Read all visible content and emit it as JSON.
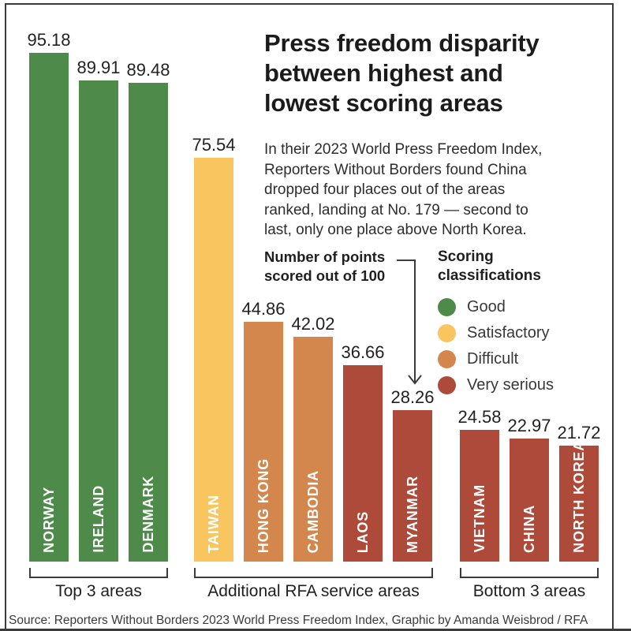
{
  "header": {
    "title_lines": [
      "Press freedom disparity",
      "between highest and",
      "lowest scoring areas"
    ],
    "subtitle_lines": [
      "In their 2023 World Press Freedom Index,",
      "Reporters Without Borders found China",
      "dropped four places out of the areas",
      "ranked, landing at No. 179 — second to",
      "last, only one place above North Korea."
    ]
  },
  "annotation": {
    "lines": [
      "Number of points",
      "scored out of 100"
    ]
  },
  "legend": {
    "title_lines": [
      "Scoring",
      "classifications"
    ],
    "items": [
      {
        "key": "good",
        "label": "Good",
        "color": "#4e8b4a"
      },
      {
        "key": "satisfactory",
        "label": "Satisfactory",
        "color": "#f9c55f"
      },
      {
        "key": "difficult",
        "label": "Difficult",
        "color": "#d3874d"
      },
      {
        "key": "very_serious",
        "label": "Very serious",
        "color": "#ae4a39"
      }
    ]
  },
  "chart_data": {
    "type": "bar",
    "title": "Press freedom disparity between highest and lowest scoring areas",
    "ylabel": "Number of points scored out of 100",
    "ylim": [
      0,
      100
    ],
    "grid": false,
    "legend_position": "right",
    "groups": [
      {
        "label": "Top 3 areas",
        "bars": [
          {
            "label": "NORWAY",
            "value": 95.18,
            "classification": "good"
          },
          {
            "label": "IRELAND",
            "value": 89.91,
            "classification": "good"
          },
          {
            "label": "DENMARK",
            "value": 89.48,
            "classification": "good"
          }
        ]
      },
      {
        "label": "Additional RFA service areas",
        "bars": [
          {
            "label": "TAIWAN",
            "value": 75.54,
            "classification": "satisfactory"
          },
          {
            "label": "HONG KONG",
            "value": 44.86,
            "classification": "difficult"
          },
          {
            "label": "CAMBODIA",
            "value": 42.02,
            "classification": "difficult"
          },
          {
            "label": "LAOS",
            "value": 36.66,
            "classification": "very_serious"
          },
          {
            "label": "MYANMAR",
            "value": 28.26,
            "classification": "very_serious"
          }
        ]
      },
      {
        "label": "Bottom 3 areas",
        "bars": [
          {
            "label": "VIETNAM",
            "value": 24.58,
            "classification": "very_serious"
          },
          {
            "label": "CHINA",
            "value": 22.97,
            "classification": "very_serious"
          },
          {
            "label": "NORTH KOREA",
            "value": 21.72,
            "classification": "very_serious"
          }
        ]
      }
    ]
  },
  "source": "Source: Reporters Without Borders 2023 World Press Freedom Index, Graphic by Amanda Weisbrod / RFA"
}
